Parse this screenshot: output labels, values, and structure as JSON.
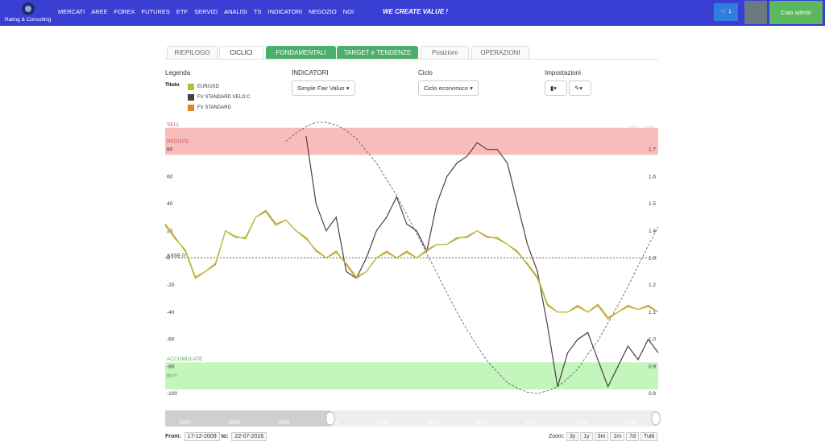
{
  "nav": {
    "brand": "Rating & Consulting",
    "menu": [
      "MERCATI",
      "AREE",
      "FOREX",
      "FUTURES",
      "ETF",
      "SERVIZI",
      "ANALISI",
      "TS",
      "INDICATORI",
      "NEGOZIO",
      "NOI"
    ],
    "slogan": "WE CREATE VALUE !",
    "cart_count": 1,
    "user": "Ciao admin"
  },
  "tabs": [
    "RIEPILOGO",
    "CICLICI",
    "FONDAMENTALI",
    "TARGET e TENDENZE",
    "Posizioni",
    "OPERAZIONI"
  ],
  "controls": {
    "legend_title": "Legenda",
    "legend_label": "Titolo",
    "indicators_title": "INDICATORI",
    "indicator": "Simple Fair Value",
    "cycle_title": "Ciclo",
    "cycle": "Ciclo economico",
    "settings_title": "Impostazioni"
  },
  "chart_data": {
    "type": "line",
    "ylim": [
      -100,
      100
    ],
    "yticks": [
      -100,
      -80,
      -60,
      -40,
      -20,
      0,
      20,
      40,
      60,
      80
    ],
    "y2lim": [
      0.8,
      1.8
    ],
    "y2ticks": [
      0.8,
      0.9,
      {
        "value": 1,
        "label": "1.0"
      },
      1.1,
      1.2,
      1.3,
      1.4,
      1.5,
      1.6,
      1.7
    ],
    "zones": [
      {
        "from": 76,
        "to": 96,
        "color": "#f9bcbc",
        "text_color": "#e05050",
        "labels": [
          "SELL",
          "REDUCE"
        ]
      },
      {
        "from": -97,
        "to": -77,
        "color": "#c3f5bd",
        "text_color": "#4caf50",
        "labels": [
          "ACCUMULATE",
          "BUY"
        ]
      }
    ],
    "zero_label": "ASSE 0",
    "series": [
      {
        "color": "#555555",
        "dash": true,
        "values": [
          null,
          null,
          null,
          null,
          null,
          null,
          null,
          null,
          null,
          null,
          null,
          null,
          86,
          92,
          97,
          100,
          100,
          98,
          94,
          88,
          79,
          70,
          58,
          46,
          32,
          18,
          3,
          -11,
          -26,
          -40,
          -53,
          -65,
          -76,
          -84,
          -92,
          -96,
          -99,
          -100,
          -98,
          -95,
          -89,
          -82,
          -71,
          -61,
          -48,
          -35,
          -21,
          -6,
          9,
          23
        ]
      },
      {
        "name": "FV STANDARD VELO C",
        "color": "#4b3f3f",
        "values": [
          null,
          null,
          null,
          null,
          null,
          null,
          null,
          null,
          null,
          null,
          null,
          null,
          null,
          null,
          90,
          40,
          20,
          30,
          -10,
          -15,
          0,
          20,
          30,
          45,
          25,
          20,
          5,
          40,
          60,
          70,
          75,
          85,
          80,
          80,
          70,
          40,
          10,
          -10,
          -50,
          -95,
          -70,
          -60,
          -55,
          -75,
          -95,
          -80,
          -65,
          -75,
          -60,
          -70
        ]
      },
      {
        "name": "FV STANDARD",
        "color": "#e0862a",
        "values": [
          25,
          15,
          5,
          -15,
          -10,
          -5,
          20,
          15,
          15,
          30,
          35,
          25,
          28,
          20,
          15,
          5,
          0,
          5,
          -5,
          -15,
          -10,
          0,
          5,
          0,
          5,
          0,
          5,
          10,
          10,
          15,
          15,
          20,
          15,
          15,
          10,
          5,
          -5,
          -15,
          -35,
          -40,
          -40,
          -35,
          -40,
          -35,
          -45,
          -40,
          -35,
          -38,
          -35,
          -40
        ]
      },
      {
        "name": "EUR/USD",
        "color": "#a4c639",
        "axis": "y2",
        "values": [
          1.42,
          1.37,
          1.33,
          1.23,
          1.25,
          1.28,
          1.4,
          1.38,
          1.37,
          1.45,
          1.47,
          1.42,
          1.44,
          1.4,
          1.37,
          1.33,
          1.3,
          1.32,
          1.28,
          1.23,
          1.25,
          1.3,
          1.32,
          1.3,
          1.32,
          1.3,
          1.33,
          1.35,
          1.35,
          1.37,
          1.38,
          1.4,
          1.38,
          1.37,
          1.35,
          1.32,
          1.28,
          1.23,
          1.13,
          1.1,
          1.1,
          1.12,
          1.1,
          1.13,
          1.08,
          1.1,
          1.12,
          1.11,
          1.12,
          1.1
        ]
      }
    ],
    "navigator": [
      "2007",
      "2008",
      "2009",
      "2010",
      "2011",
      "2012",
      "2013",
      "2014",
      "2015",
      "2016"
    ]
  },
  "range": {
    "from_label": "From:",
    "from": "17-12-2009",
    "to_label": "to:",
    "to": "22-07-2016",
    "zoom_label": "Zoom:",
    "zoom": [
      "3y",
      "1y",
      "3m",
      "1m",
      "7d",
      "Tutti"
    ]
  }
}
